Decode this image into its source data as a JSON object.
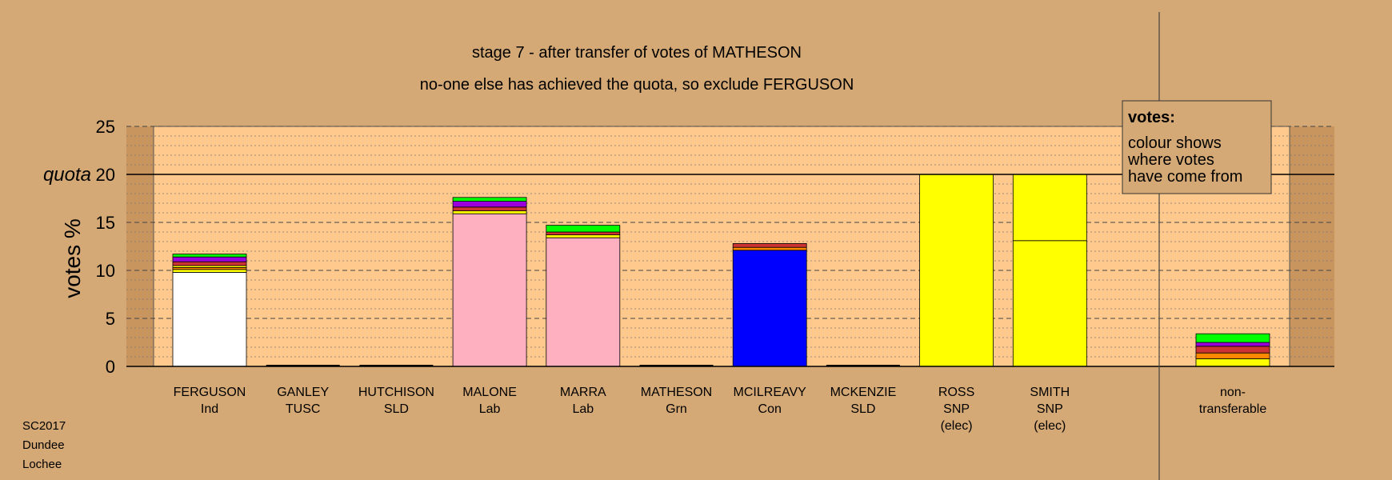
{
  "chart_data": {
    "type": "bar",
    "stacked": true,
    "title": "stage 7 - after transfer of votes of MATHESON",
    "subtitle": "no-one else has achieved the quota, so exclude FERGUSON",
    "ylabel": "votes %",
    "quota_label": "quota",
    "quota": 20,
    "ylim": [
      0,
      25
    ],
    "yticks": [
      "0",
      "5",
      "10",
      "15",
      "20",
      "25"
    ],
    "legend": {
      "title": "votes:",
      "lines": [
        "colour shows",
        "where votes",
        "have come from"
      ],
      "placement": "top-right"
    },
    "footer": [
      "SC2017",
      "Dundee",
      "Lochee"
    ],
    "colors": {
      "background": "#d5a975",
      "plot_area": "#ffc88c",
      "Ind": "#ffffff",
      "Lab": "#ffb0c0",
      "Con": "#0000ff",
      "SNP": "#ffff00",
      "Grn": "#00ff00",
      "SLD": "#9900dd",
      "TUSC": "#cc3333",
      "other": "#ff8800"
    },
    "candidates": [
      {
        "name": "FERGUSON",
        "party": "Ind",
        "total": 11.7,
        "segments": [
          {
            "from": "Ind",
            "value": 9.8
          },
          {
            "from": "SNP",
            "value": 0.3
          },
          {
            "from": "other",
            "value": 0.2
          },
          {
            "from": "SNP",
            "value": 0.2
          },
          {
            "from": "TUSC",
            "value": 0.4
          },
          {
            "from": "SLD",
            "value": 0.5
          },
          {
            "from": "Grn",
            "value": 0.3
          }
        ]
      },
      {
        "name": "GANLEY",
        "party": "TUSC",
        "total": 0,
        "segments": []
      },
      {
        "name": "HUTCHISON",
        "party": "SLD",
        "total": 0,
        "segments": []
      },
      {
        "name": "MALONE",
        "party": "Lab",
        "total": 17.6,
        "segments": [
          {
            "from": "Lab",
            "value": 15.9
          },
          {
            "from": "SNP",
            "value": 0.3
          },
          {
            "from": "TUSC",
            "value": 0.4
          },
          {
            "from": "SLD",
            "value": 0.6
          },
          {
            "from": "Grn",
            "value": 0.4
          }
        ]
      },
      {
        "name": "MARRA",
        "party": "Lab",
        "total": 14.7,
        "segments": [
          {
            "from": "Lab",
            "value": 13.4
          },
          {
            "from": "SNP",
            "value": 0.3
          },
          {
            "from": "TUSC",
            "value": 0.3
          },
          {
            "from": "Grn",
            "value": 0.7
          }
        ]
      },
      {
        "name": "MATHESON",
        "party": "Grn",
        "total": 0,
        "segments": []
      },
      {
        "name": "MCILREAVY",
        "party": "Con",
        "total": 12.8,
        "segments": [
          {
            "from": "Con",
            "value": 12.1
          },
          {
            "from": "other",
            "value": 0.3
          },
          {
            "from": "TUSC",
            "value": 0.4
          }
        ]
      },
      {
        "name": "MCKENZIE",
        "party": "SLD",
        "total": 0,
        "segments": []
      },
      {
        "name": "ROSS",
        "party": "SNP",
        "status": "(elec)",
        "total": 20.0,
        "segments": [
          {
            "from": "SNP",
            "value": 20.0
          }
        ]
      },
      {
        "name": "SMITH",
        "party": "SNP",
        "status": "(elec)",
        "total": 20.0,
        "segments": [
          {
            "from": "SNP",
            "value": 13.1
          },
          {
            "from": "SNP",
            "value": 6.9
          }
        ]
      }
    ],
    "nontransferable": {
      "label_lines": [
        "non-",
        "transferable"
      ],
      "total": 3.4,
      "segments": [
        {
          "from": "SNP",
          "value": 0.8
        },
        {
          "from": "other",
          "value": 0.6
        },
        {
          "from": "TUSC",
          "value": 0.7
        },
        {
          "from": "SLD",
          "value": 0.4
        },
        {
          "from": "Grn",
          "value": 0.9
        }
      ]
    }
  }
}
